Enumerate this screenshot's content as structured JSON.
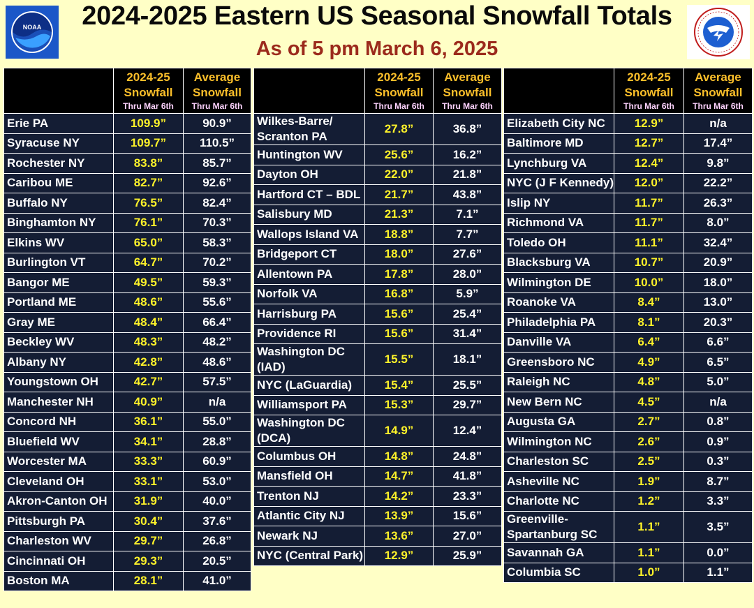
{
  "header": {
    "title": "2024-2025 Eastern US Seasonal Snowfall Totals",
    "subtitle": "As of 5 pm March 6, 2025",
    "left_logo": "noaa-logo",
    "right_logo": "nws-logo",
    "right_logo_text": "NATIONAL WEATHER SERVICE"
  },
  "column_headers": {
    "col1_line1": "2024-25",
    "col1_line2": "Snowfall",
    "col1_sub": "Thru Mar 6th",
    "col2_line1": "Average",
    "col2_line2": "Snowfall",
    "col2_sub": "Thru Mar 6th"
  },
  "colors": {
    "background": "#ffffc6",
    "table_bg": "#141d34",
    "header_bg": "#000000",
    "current_value": "#fdf22a",
    "header_label": "#fbbf2a",
    "header_sub": "#ffd4ff",
    "subtitle": "#9b2a1c"
  },
  "tables": [
    {
      "rows": [
        {
          "city": "Erie PA",
          "snow": "109.9”",
          "avg": "90.9”"
        },
        {
          "city": "Syracuse NY",
          "snow": "109.7”",
          "avg": "110.5”"
        },
        {
          "city": "Rochester NY",
          "snow": "83.8”",
          "avg": "85.7”"
        },
        {
          "city": "Caribou ME",
          "snow": "82.7”",
          "avg": "92.6”"
        },
        {
          "city": "Buffalo NY",
          "snow": "76.5”",
          "avg": "82.4”"
        },
        {
          "city": "Binghamton NY",
          "snow": "76.1”",
          "avg": "70.3”"
        },
        {
          "city": "Elkins WV",
          "snow": "65.0”",
          "avg": "58.3”"
        },
        {
          "city": "Burlington VT",
          "snow": "64.7”",
          "avg": "70.2”"
        },
        {
          "city": "Bangor ME",
          "snow": "49.5”",
          "avg": "59.3”"
        },
        {
          "city": "Portland ME",
          "snow": "48.6”",
          "avg": "55.6”"
        },
        {
          "city": "Gray ME",
          "snow": "48.4”",
          "avg": "66.4”"
        },
        {
          "city": "Beckley WV",
          "snow": "48.3”",
          "avg": "48.2”"
        },
        {
          "city": "Albany NY",
          "snow": "42.8”",
          "avg": "48.6”"
        },
        {
          "city": "Youngstown OH",
          "snow": "42.7”",
          "avg": "57.5”"
        },
        {
          "city": "Manchester NH",
          "snow": "40.9”",
          "avg": "n/a"
        },
        {
          "city": "Concord NH",
          "snow": "36.1”",
          "avg": "55.0”"
        },
        {
          "city": "Bluefield WV",
          "snow": "34.1”",
          "avg": "28.8”"
        },
        {
          "city": "Worcester MA",
          "snow": "33.3”",
          "avg": "60.9”"
        },
        {
          "city": "Cleveland OH",
          "snow": "33.1”",
          "avg": "53.0”"
        },
        {
          "city": "Akron-Canton OH",
          "snow": "31.9”",
          "avg": "40.0”"
        },
        {
          "city": "Pittsburgh PA",
          "snow": "30.4”",
          "avg": "37.6”"
        },
        {
          "city": "Charleston WV",
          "snow": "29.7”",
          "avg": "26.8”"
        },
        {
          "city": "Cincinnati OH",
          "snow": "29.3”",
          "avg": "20.5”"
        },
        {
          "city": "Boston MA",
          "snow": "28.1”",
          "avg": "41.0”"
        }
      ]
    },
    {
      "rows": [
        {
          "city": "Wilkes-Barre/ Scranton PA",
          "snow": "27.8”",
          "avg": "36.8”",
          "tall": true
        },
        {
          "city": "Huntington WV",
          "snow": "25.6”",
          "avg": "16.2”"
        },
        {
          "city": "Dayton OH",
          "snow": "22.0”",
          "avg": "21.8”"
        },
        {
          "city": "Hartford CT – BDL",
          "snow": "21.7”",
          "avg": "43.8”"
        },
        {
          "city": "Salisbury MD",
          "snow": "21.3”",
          "avg": "7.1”"
        },
        {
          "city": "Wallops Island VA",
          "snow": "18.8”",
          "avg": "7.7”"
        },
        {
          "city": "Bridgeport CT",
          "snow": "18.0”",
          "avg": "27.6”"
        },
        {
          "city": "Allentown PA",
          "snow": "17.8”",
          "avg": "28.0”"
        },
        {
          "city": "Norfolk VA",
          "snow": "16.8”",
          "avg": "5.9”"
        },
        {
          "city": "Harrisburg PA",
          "snow": "15.6”",
          "avg": "25.4”"
        },
        {
          "city": "Providence RI",
          "snow": "15.6”",
          "avg": "31.4”"
        },
        {
          "city": "Washington DC (IAD)",
          "snow": "15.5”",
          "avg": "18.1”",
          "tall": true
        },
        {
          "city": "NYC (LaGuardia)",
          "snow": "15.4”",
          "avg": "25.5”"
        },
        {
          "city": "Williamsport PA",
          "snow": "15.3”",
          "avg": "29.7”"
        },
        {
          "city": "Washington DC (DCA)",
          "snow": "14.9”",
          "avg": "12.4”",
          "tall": true
        },
        {
          "city": "Columbus OH",
          "snow": "14.8”",
          "avg": "24.8”"
        },
        {
          "city": "Mansfield OH",
          "snow": "14.7”",
          "avg": "41.8”"
        },
        {
          "city": "Trenton NJ",
          "snow": "14.2”",
          "avg": "23.3”"
        },
        {
          "city": "Atlantic City NJ",
          "snow": "13.9”",
          "avg": "15.6”"
        },
        {
          "city": "Newark NJ",
          "snow": "13.6”",
          "avg": "27.0”"
        },
        {
          "city": "NYC (Central Park)",
          "snow": "12.9”",
          "avg": "25.9”"
        }
      ]
    },
    {
      "rows": [
        {
          "city": "Elizabeth City NC",
          "snow": "12.9”",
          "avg": "n/a"
        },
        {
          "city": "Baltimore MD",
          "snow": "12.7”",
          "avg": "17.4”"
        },
        {
          "city": "Lynchburg VA",
          "snow": "12.4”",
          "avg": "9.8”"
        },
        {
          "city": "NYC (J F Kennedy)",
          "snow": "12.0”",
          "avg": "22.2”"
        },
        {
          "city": "Islip NY",
          "snow": "11.7”",
          "avg": "26.3”"
        },
        {
          "city": "Richmond VA",
          "snow": "11.7”",
          "avg": "8.0”"
        },
        {
          "city": "Toledo OH",
          "snow": "11.1”",
          "avg": "32.4”"
        },
        {
          "city": "Blacksburg VA",
          "snow": "10.7”",
          "avg": "20.9”"
        },
        {
          "city": "Wilmington DE",
          "snow": "10.0”",
          "avg": "18.0”"
        },
        {
          "city": "Roanoke VA",
          "snow": "8.4”",
          "avg": "13.0”"
        },
        {
          "city": "Philadelphia PA",
          "snow": "8.1”",
          "avg": "20.3”"
        },
        {
          "city": "Danville VA",
          "snow": "6.4”",
          "avg": "6.6”"
        },
        {
          "city": "Greensboro NC",
          "snow": "4.9”",
          "avg": "6.5”"
        },
        {
          "city": "Raleigh NC",
          "snow": "4.8”",
          "avg": "5.0”"
        },
        {
          "city": "New Bern NC",
          "snow": "4.5”",
          "avg": "n/a"
        },
        {
          "city": "Augusta GA",
          "snow": "2.7”",
          "avg": "0.8”"
        },
        {
          "city": "Wilmington NC",
          "snow": "2.6”",
          "avg": "0.9”"
        },
        {
          "city": "Charleston SC",
          "snow": "2.5”",
          "avg": "0.3”"
        },
        {
          "city": "Asheville NC",
          "snow": "1.9”",
          "avg": "8.7”"
        },
        {
          "city": "Charlotte NC",
          "snow": "1.2”",
          "avg": "3.3”"
        },
        {
          "city": "Greenville-Spartanburg SC",
          "snow": "1.1”",
          "avg": "3.5”",
          "tall": true
        },
        {
          "city": "Savannah GA",
          "snow": "1.1”",
          "avg": "0.0”"
        },
        {
          "city": "Columbia SC",
          "snow": "1.0”",
          "avg": "1.1”"
        }
      ]
    }
  ]
}
